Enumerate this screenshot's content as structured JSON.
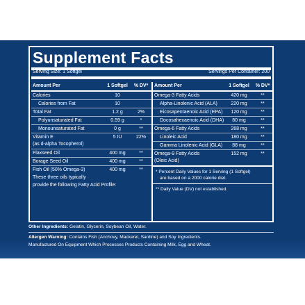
{
  "title": "Supplement Facts",
  "serving_size": "Serving Size: 1 Softgel",
  "servings_per_container": "Servings Per Container: 200",
  "left": {
    "headers": [
      "Amount Per",
      "1 Softgel",
      "% DV*"
    ],
    "rows": [
      {
        "name": "Calories",
        "value": "10",
        "dv": ""
      },
      {
        "name": "Calories from Fat",
        "value": "10",
        "dv": "",
        "indent": true
      },
      {
        "name": "Total Fat",
        "value": "1.2 g",
        "dv": "2%"
      },
      {
        "name": "Polyunsaturated Fat",
        "value": "0.59 g",
        "dv": "*",
        "indent": true
      },
      {
        "name": "Monounsaturated Fat",
        "value": "0 g",
        "dv": "**",
        "indent": true
      },
      {
        "name": "Vitamin E",
        "name2": "(as d-alpha Tocopherol)",
        "value": "5 IU",
        "dv": "22%"
      },
      {
        "name": "Flaxseed Oil",
        "value": "400 mg",
        "dv": "**"
      },
      {
        "name": "Borage Seed Oil",
        "value": "400 mg",
        "dv": "**"
      },
      {
        "name": "Fish Oil (50% Omega-3)",
        "value": "400 mg",
        "dv": "**"
      }
    ],
    "fish_note_1": "These three oils typically",
    "fish_note_2": "provide the following Fatty Acid Profile:"
  },
  "right": {
    "headers": [
      "Amount Per",
      "1 Softgel",
      "% DV*"
    ],
    "rows": [
      {
        "name": "Omega-3 Fatty Acids",
        "value": "420 mg",
        "dv": "**"
      },
      {
        "name": "Alpha-Linolenic Acid (ALA)",
        "value": "220 mg",
        "dv": "**",
        "indent": true
      },
      {
        "name": "Eicosapentaenoic Acid (EPA)",
        "value": "120 mg",
        "dv": "**",
        "indent": true
      },
      {
        "name": "Docosahexaenoic Acid (DHA)",
        "value": "80 mg",
        "dv": "**",
        "indent": true
      },
      {
        "name": "Omega-6 Fatty Acids",
        "value": "268 mg",
        "dv": "**"
      },
      {
        "name": "Linoleic Acid",
        "value": "180 mg",
        "dv": "**",
        "indent": true
      },
      {
        "name": "Gamma Linolenic Acid (GLA)",
        "value": "88 mg",
        "dv": "**",
        "indent": true
      },
      {
        "name": "Omega-9 Fatty Acids",
        "name2": "(Oleic Acid)",
        "value": "152 mg",
        "dv": "**"
      }
    ],
    "note1a": "* Percent Daily Values for 1 Serving (1 Softgel)",
    "note1b": "are based on a 2000 calorie diet.",
    "note2": "** Daily Value (DV) not established."
  },
  "other_label": "Other Ingredients:",
  "other_text": "Gelatin, Glycerin, Soybean Oil, Water.",
  "allergen_label": "Allergen Warning:",
  "allergen_text": "Contains Fish (Anchovy, Mackerel, Sardine) and Soy Ingredients.",
  "allergen_text2": "Manufactured On Equipment Which Processes Products Containing Milk, Egg and Wheat.",
  "colors": {
    "background": "#0f3b73",
    "text": "#ffffff"
  }
}
